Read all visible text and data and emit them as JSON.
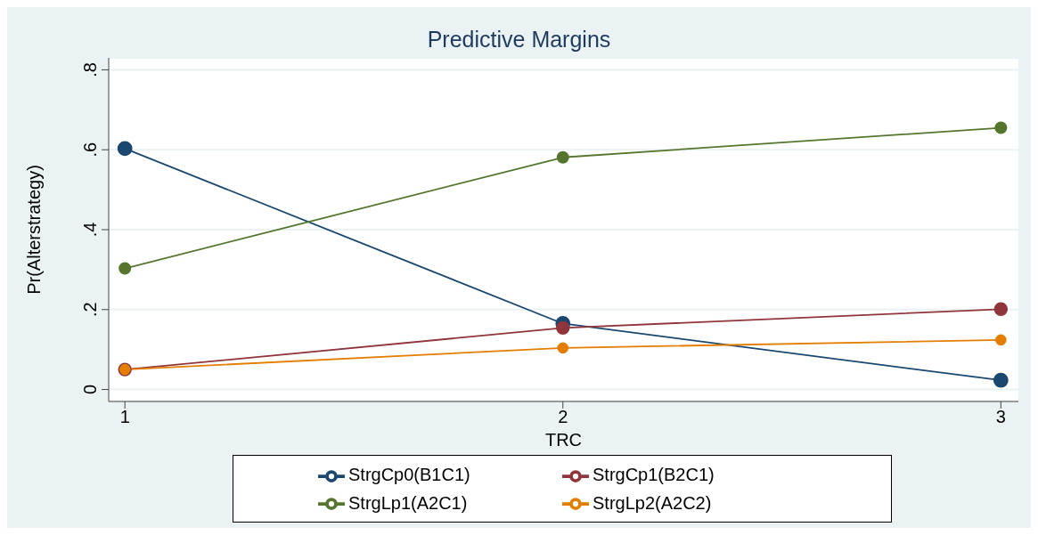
{
  "chart_data": {
    "type": "line",
    "title": "Predictive Margins",
    "xlabel": "TRC",
    "ylabel": "Pr(Alterstrategy)",
    "x": [
      1,
      2,
      3
    ],
    "series": [
      {
        "name": "StrgCp0(B1C1)",
        "color": "#1a476f",
        "values": [
          0.603,
          0.165,
          0.023
        ]
      },
      {
        "name": "StrgCp1(B2C1)",
        "color": "#90353b",
        "values": [
          0.05,
          0.154,
          0.201
        ]
      },
      {
        "name": "StrgLp1(A2C1)",
        "color": "#55752f",
        "values": [
          0.303,
          0.581,
          0.655
        ]
      },
      {
        "name": "StrgLp2(A2C2)",
        "color": "#e37e00",
        "values": [
          0.05,
          0.104,
          0.124
        ]
      }
    ],
    "xlim": [
      0.963,
      3.04
    ],
    "xticks": [
      1,
      2,
      3
    ],
    "ylim": [
      -0.03,
      0.83
    ],
    "yticks": [
      0,
      {
        "value": 0.2,
        "label": ".2"
      },
      {
        "value": 0.4,
        "label": ".4"
      },
      {
        "value": 0.6,
        "label": ".6"
      },
      {
        "value": 0.8,
        "label": ".8"
      }
    ],
    "grid": "y",
    "legend": "bottom",
    "marker": "circle",
    "line_style": "solid"
  }
}
